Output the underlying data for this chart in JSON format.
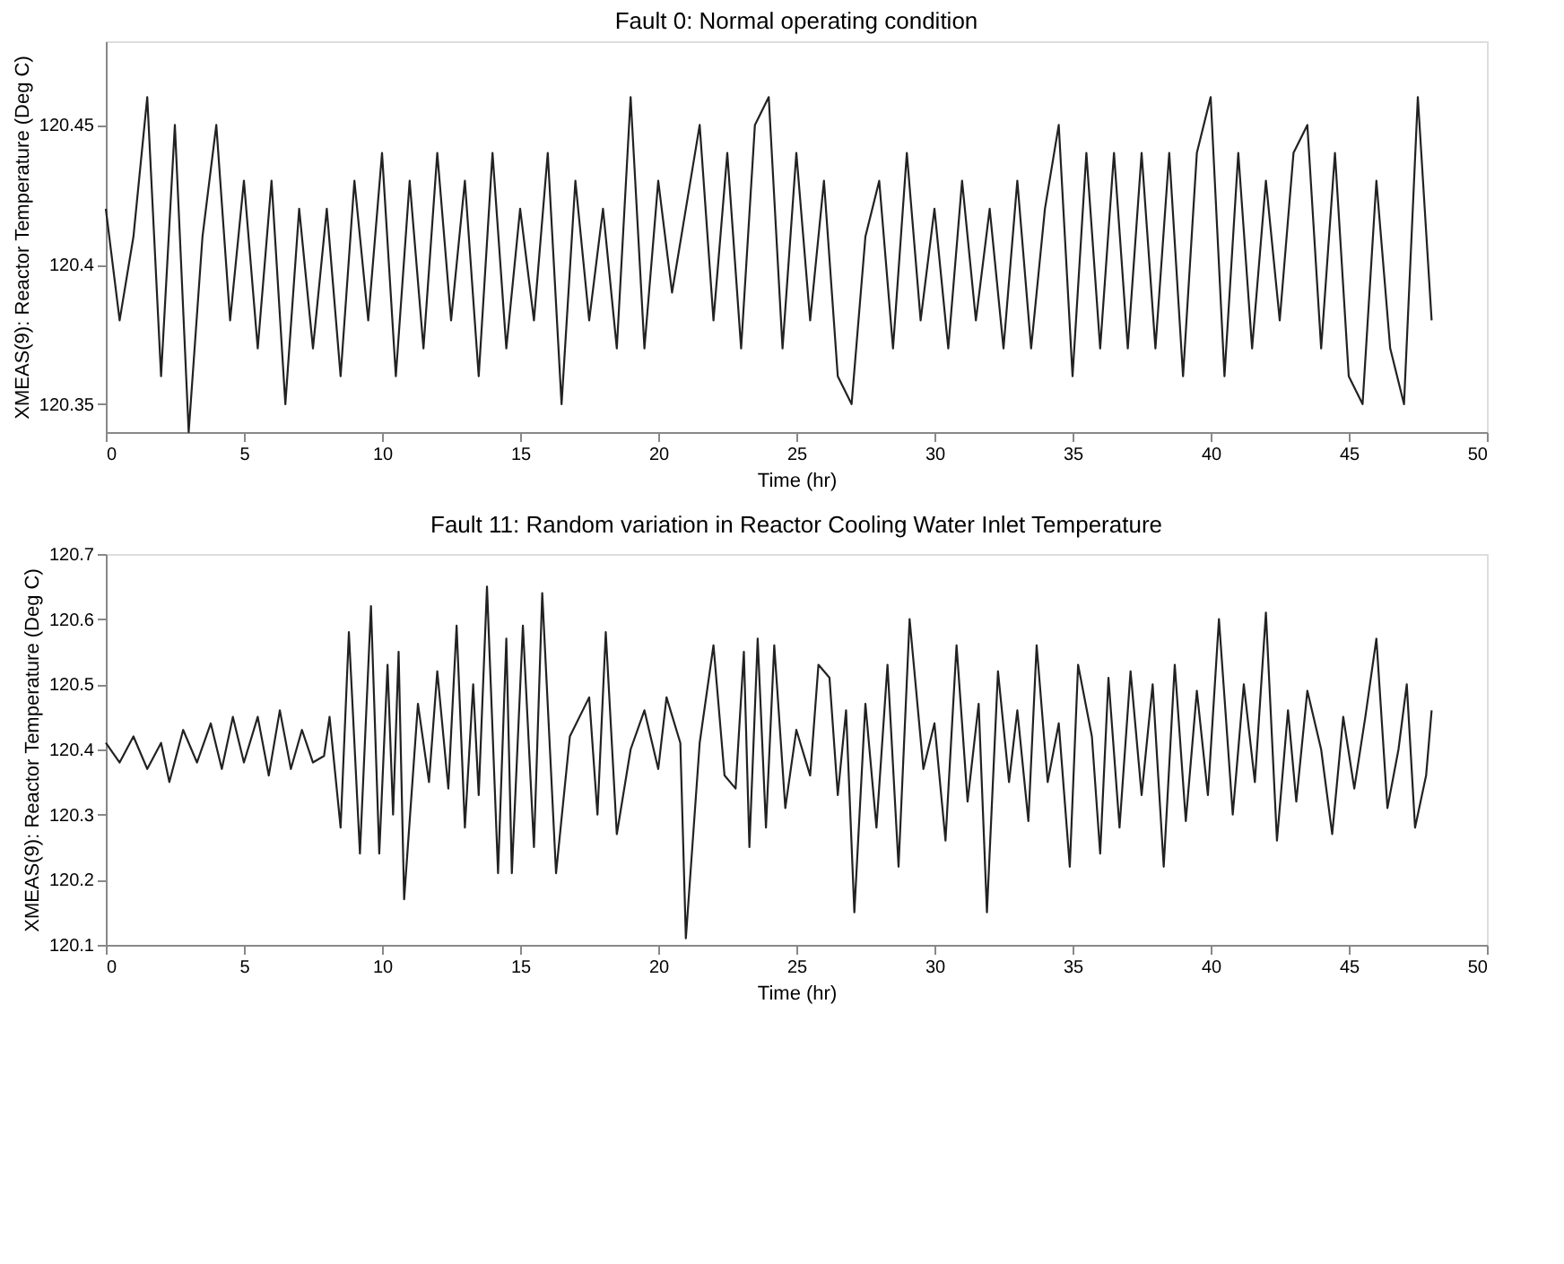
{
  "chart_data": [
    {
      "type": "line",
      "title": "Fault 0: Normal operating condition",
      "xlabel": "Time (hr)",
      "ylabel": "XMEAS(9): Reactor Temperature (Deg C)",
      "xlim": [
        0,
        50
      ],
      "ylim": [
        120.34,
        120.48
      ],
      "xticks": [
        0,
        5,
        10,
        15,
        20,
        25,
        30,
        35,
        40,
        45,
        50
      ],
      "yticks": [
        120.35,
        120.4,
        120.45
      ],
      "grid": false,
      "marker": "none",
      "line_style": "solid",
      "series": [
        {
          "color": "#222222",
          "x": [
            0,
            0.5,
            1,
            1.5,
            2,
            2.5,
            3,
            3.5,
            4,
            4.5,
            5,
            5.5,
            6,
            6.5,
            7,
            7.5,
            8,
            8.5,
            9,
            9.5,
            10,
            10.5,
            11,
            11.5,
            12,
            12.5,
            13,
            13.5,
            14,
            14.5,
            15,
            15.5,
            16,
            16.5,
            17,
            17.5,
            18,
            18.5,
            19,
            19.5,
            20,
            20.5,
            21,
            21.5,
            22,
            22.5,
            23,
            23.5,
            24,
            24.5,
            25,
            25.5,
            26,
            26.5,
            27,
            27.5,
            28,
            28.5,
            29,
            29.5,
            30,
            30.5,
            31,
            31.5,
            32,
            32.5,
            33,
            33.5,
            34,
            34.5,
            35,
            35.5,
            36,
            36.5,
            37,
            37.5,
            38,
            38.5,
            39,
            39.5,
            40,
            40.5,
            41,
            41.5,
            42,
            42.5,
            43,
            43.5,
            44,
            44.5,
            45,
            45.5,
            46,
            46.5,
            47,
            47.5,
            48
          ],
          "values": [
            120.42,
            120.38,
            120.41,
            120.46,
            120.36,
            120.45,
            120.34,
            120.41,
            120.45,
            120.38,
            120.43,
            120.37,
            120.43,
            120.35,
            120.42,
            120.37,
            120.42,
            120.36,
            120.43,
            120.38,
            120.44,
            120.36,
            120.43,
            120.37,
            120.44,
            120.38,
            120.43,
            120.36,
            120.44,
            120.37,
            120.42,
            120.38,
            120.44,
            120.35,
            120.43,
            120.38,
            120.42,
            120.37,
            120.46,
            120.37,
            120.43,
            120.39,
            120.42,
            120.45,
            120.38,
            120.44,
            120.37,
            120.45,
            120.46,
            120.37,
            120.44,
            120.38,
            120.43,
            120.36,
            120.35,
            120.41,
            120.43,
            120.37,
            120.44,
            120.38,
            120.42,
            120.37,
            120.43,
            120.38,
            120.42,
            120.37,
            120.43,
            120.37,
            120.42,
            120.45,
            120.36,
            120.44,
            120.37,
            120.44,
            120.37,
            120.44,
            120.37,
            120.44,
            120.36,
            120.44,
            120.46,
            120.36,
            120.44,
            120.37,
            120.43,
            120.38,
            120.44,
            120.45,
            120.37,
            120.44,
            120.36,
            120.35,
            120.43,
            120.37,
            120.35,
            120.46,
            120.38
          ]
        }
      ]
    },
    {
      "type": "line",
      "title": "Fault 11: Random variation in Reactor Cooling Water Inlet Temperature",
      "xlabel": "Time (hr)",
      "ylabel": "XMEAS(9): Reactor Temperature (Deg C)",
      "xlim": [
        0,
        50
      ],
      "ylim": [
        120.1,
        120.7
      ],
      "xticks": [
        0,
        5,
        10,
        15,
        20,
        25,
        30,
        35,
        40,
        45,
        50
      ],
      "yticks": [
        120.1,
        120.2,
        120.3,
        120.4,
        120.5,
        120.6,
        120.7
      ],
      "grid": false,
      "marker": "none",
      "line_style": "solid",
      "series": [
        {
          "color": "#222222",
          "x": [
            0,
            0.5,
            1,
            1.5,
            2,
            2.3,
            2.8,
            3.3,
            3.8,
            4.2,
            4.6,
            5,
            5.5,
            5.9,
            6.3,
            6.7,
            7.1,
            7.5,
            7.9,
            8.1,
            8.5,
            8.8,
            9.2,
            9.6,
            9.9,
            10.2,
            10.4,
            10.6,
            10.8,
            11.3,
            11.7,
            12.0,
            12.4,
            12.7,
            13.0,
            13.3,
            13.5,
            13.8,
            14.2,
            14.5,
            14.7,
            15.1,
            15.5,
            15.8,
            16.3,
            16.8,
            17.5,
            17.8,
            18.1,
            18.5,
            19.0,
            19.5,
            20.0,
            20.3,
            20.8,
            21.0,
            21.5,
            22.0,
            22.4,
            22.8,
            23.1,
            23.3,
            23.6,
            23.9,
            24.2,
            24.6,
            25.0,
            25.5,
            25.8,
            26.2,
            26.5,
            26.8,
            27.1,
            27.5,
            27.9,
            28.3,
            28.7,
            29.1,
            29.6,
            30.0,
            30.4,
            30.8,
            31.2,
            31.6,
            31.9,
            32.3,
            32.7,
            33.0,
            33.4,
            33.7,
            34.1,
            34.5,
            34.9,
            35.2,
            35.7,
            36.0,
            36.3,
            36.7,
            37.1,
            37.5,
            37.9,
            38.3,
            38.7,
            39.1,
            39.5,
            39.9,
            40.3,
            40.8,
            41.2,
            41.6,
            42.0,
            42.4,
            42.8,
            43.1,
            43.5,
            44.0,
            44.4,
            44.8,
            45.2,
            45.6,
            46.0,
            46.4,
            46.8,
            47.1,
            47.4,
            47.8,
            48.0
          ],
          "values": [
            120.41,
            120.38,
            120.42,
            120.37,
            120.41,
            120.35,
            120.43,
            120.38,
            120.44,
            120.37,
            120.45,
            120.38,
            120.45,
            120.36,
            120.46,
            120.37,
            120.43,
            120.38,
            120.39,
            120.45,
            120.28,
            120.58,
            120.24,
            120.62,
            120.24,
            120.53,
            120.3,
            120.55,
            120.17,
            120.47,
            120.35,
            120.52,
            120.34,
            120.59,
            120.28,
            120.5,
            120.33,
            120.65,
            120.21,
            120.57,
            120.21,
            120.59,
            120.25,
            120.64,
            120.21,
            120.42,
            120.48,
            120.3,
            120.58,
            120.27,
            120.4,
            120.46,
            120.37,
            120.48,
            120.41,
            120.11,
            120.41,
            120.56,
            120.36,
            120.34,
            120.55,
            120.25,
            120.57,
            120.28,
            120.56,
            120.31,
            120.43,
            120.36,
            120.53,
            120.51,
            120.33,
            120.46,
            120.15,
            120.47,
            120.28,
            120.53,
            120.22,
            120.6,
            120.37,
            120.44,
            120.26,
            120.56,
            120.32,
            120.47,
            120.15,
            120.52,
            120.35,
            120.46,
            120.29,
            120.56,
            120.35,
            120.44,
            120.22,
            120.53,
            120.42,
            120.24,
            120.51,
            120.28,
            120.52,
            120.33,
            120.5,
            120.22,
            120.53,
            120.29,
            120.49,
            120.33,
            120.6,
            120.3,
            120.5,
            120.35,
            120.61,
            120.26,
            120.46,
            120.32,
            120.49,
            120.4,
            120.27,
            120.45,
            120.34,
            120.45,
            120.57,
            120.31,
            120.4,
            120.5,
            120.28,
            120.36,
            120.46
          ]
        }
      ]
    }
  ]
}
